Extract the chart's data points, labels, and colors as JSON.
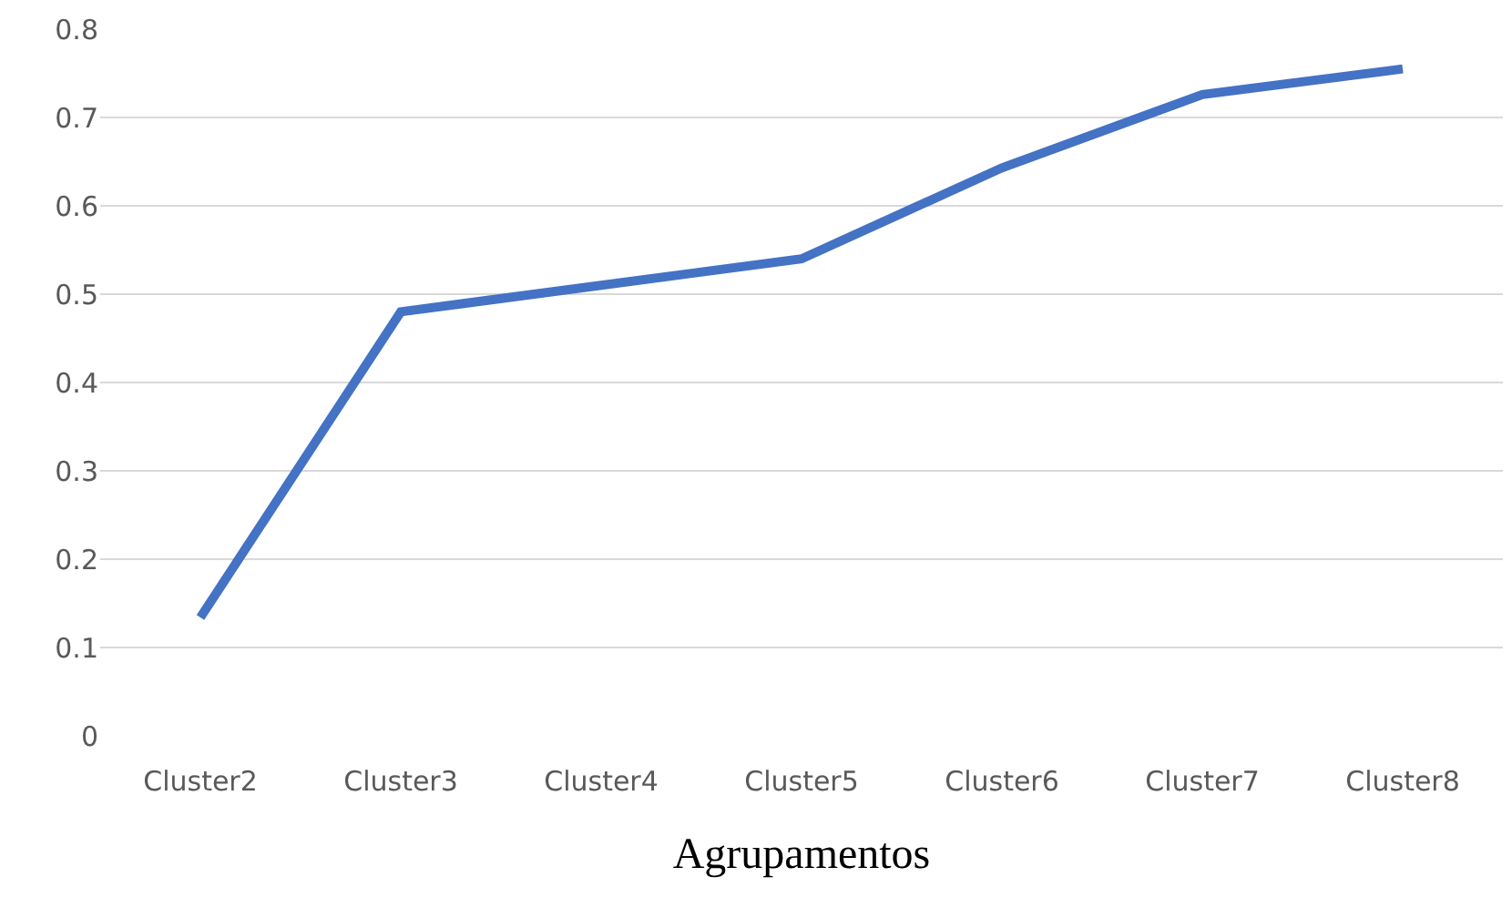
{
  "chart_data": {
    "type": "line",
    "xlabel": "Agrupamentos",
    "categories": [
      "Cluster2",
      "Cluster3",
      "Cluster4",
      "Cluster5",
      "Cluster6",
      "Cluster7",
      "Cluster8"
    ],
    "series": [
      {
        "color": "#4472c4",
        "values": [
          0.134,
          0.48,
          0.51,
          0.54,
          0.643,
          0.726,
          0.755
        ]
      }
    ],
    "ylim": [
      0,
      0.8
    ],
    "yticks": [
      0,
      0.1,
      0.2,
      0.3,
      0.4,
      0.5,
      0.6,
      0.7,
      0.8
    ],
    "grid": "y",
    "legend": false,
    "marker": "none",
    "line_style": "solid"
  }
}
